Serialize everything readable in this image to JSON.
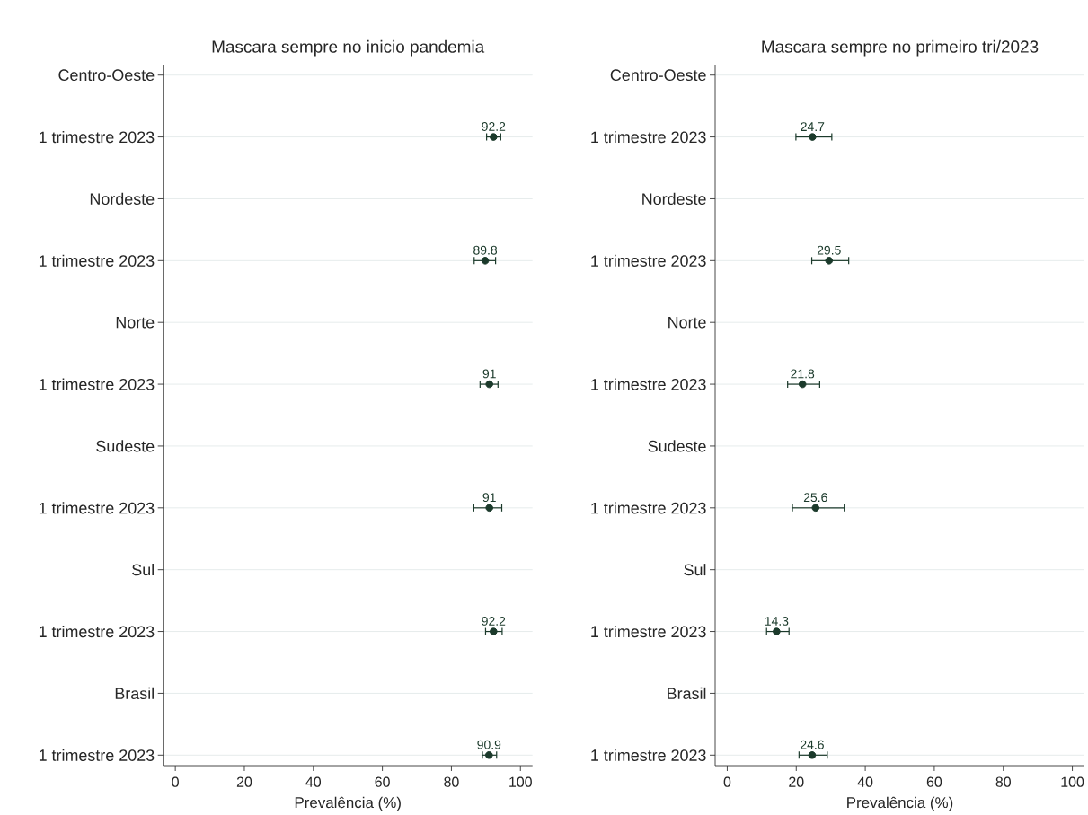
{
  "chart_data": [
    {
      "type": "scatter",
      "orientation": "horizontal",
      "title": "Mascara sempre no inicio pandemia",
      "xlabel": "Prevalência (%)",
      "categories": [
        "Centro-Oeste",
        "1 trimestre 2023",
        "Nordeste",
        "1 trimestre 2023",
        "Norte",
        "1 trimestre 2023",
        "Sudeste",
        "1 trimestre 2023",
        "Sul",
        "1 trimestre 2023",
        "Brasil",
        "1 trimestre 2023"
      ],
      "values": [
        null,
        92.2,
        null,
        89.8,
        null,
        91,
        null,
        91,
        null,
        92.2,
        null,
        90.9
      ],
      "errors": [
        null,
        [
          90.2,
          94.3
        ],
        null,
        [
          86.6,
          92.8
        ],
        null,
        [
          88.3,
          93.5
        ],
        null,
        [
          86.5,
          94.6
        ],
        null,
        [
          89.9,
          94.7
        ],
        null,
        [
          89.0,
          93.1
        ]
      ],
      "color": "#1b3a2b",
      "xlim": [
        -3.5,
        103.5
      ],
      "xticks": [
        0,
        20,
        40,
        60,
        80,
        100
      ],
      "grid": "y",
      "marker": "circle",
      "data_labels": true
    },
    {
      "type": "scatter",
      "orientation": "horizontal",
      "title": "Mascara sempre no primeiro tri/2023",
      "xlabel": "Prevalência (%)",
      "categories": [
        "Centro-Oeste",
        "1 trimestre 2023",
        "Nordeste",
        "1 trimestre 2023",
        "Norte",
        "1 trimestre 2023",
        "Sudeste",
        "1 trimestre 2023",
        "Sul",
        "1 trimestre 2023",
        "Brasil",
        "1 trimestre 2023"
      ],
      "values": [
        null,
        24.7,
        null,
        29.5,
        null,
        21.8,
        null,
        25.6,
        null,
        14.3,
        null,
        24.6
      ],
      "errors": [
        null,
        [
          19.9,
          30.3
        ],
        null,
        [
          24.5,
          35.2
        ],
        null,
        [
          17.5,
          26.8
        ],
        null,
        [
          18.9,
          33.9
        ],
        null,
        [
          11.4,
          17.9
        ],
        null,
        [
          20.8,
          29.0
        ]
      ],
      "color": "#1b3a2b",
      "xlim": [
        -3.5,
        103.5
      ],
      "xticks": [
        0,
        20,
        40,
        60,
        80,
        100
      ],
      "grid": "y",
      "marker": "circle",
      "data_labels": true
    }
  ]
}
